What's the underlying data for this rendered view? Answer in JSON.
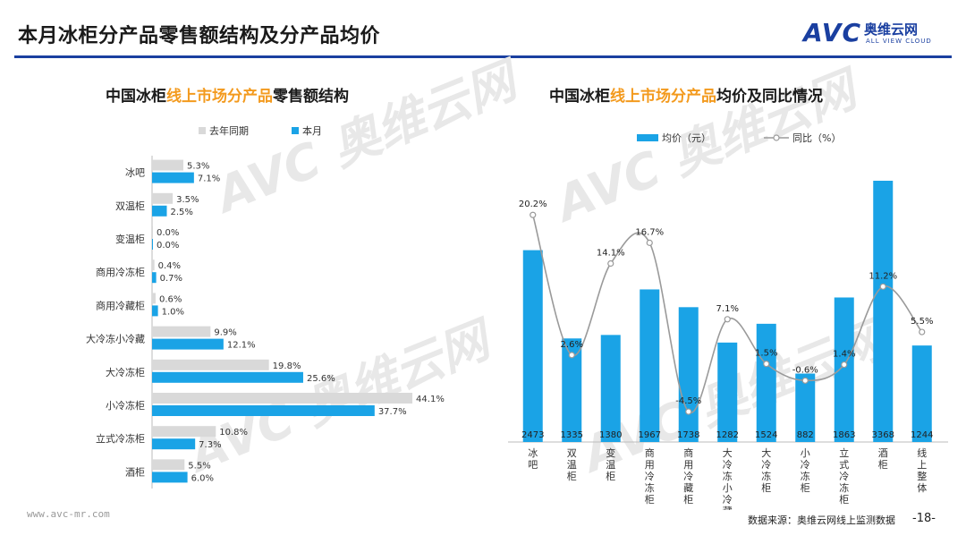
{
  "header": {
    "title": "本月冰柜分产品零售额结构及分产品均价",
    "logo_text": "AVC",
    "logo_cn": "奥维云网",
    "logo_en": "ALL VIEW CLOUD"
  },
  "colors": {
    "blue": "#1aa3e6",
    "gray": "#d9d9d9",
    "line": "#9a9a9a",
    "accent": "#f39a1e",
    "brand": "#1a3fa0"
  },
  "footer": {
    "url": "www.avc-mr.com",
    "source": "数据来源：奥维云网线上监测数据",
    "page": "-18-"
  },
  "chart_data": [
    {
      "type": "bar",
      "orientation": "horizontal",
      "title_parts": [
        "中国冰柜",
        "线上市场分产品",
        "零售额结构"
      ],
      "categories": [
        "冰吧",
        "双温柜",
        "变温柜",
        "商用冷冻柜",
        "商用冷藏柜",
        "大冷冻小冷藏",
        "大冷冻柜",
        "小冷冻柜",
        "立式冷冻柜",
        "酒柜"
      ],
      "series": [
        {
          "name": "去年同期",
          "values": [
            5.3,
            3.5,
            0.0,
            0.4,
            0.6,
            9.9,
            19.8,
            44.1,
            10.8,
            5.5
          ],
          "labels": [
            "5.3%",
            "3.5%",
            "0.0%",
            "0.4%",
            "0.6%",
            "9.9%",
            "19.8%",
            "44.1%",
            "10.8%",
            "5.5%"
          ]
        },
        {
          "name": "本月",
          "values": [
            7.1,
            2.5,
            0.0,
            0.7,
            1.0,
            12.1,
            25.6,
            37.7,
            7.3,
            6.0
          ],
          "labels": [
            "7.1%",
            "2.5%",
            "0.0%",
            "0.7%",
            "1.0%",
            "12.1%",
            "25.6%",
            "37.7%",
            "7.3%",
            "6.0%"
          ]
        }
      ],
      "xlim": [
        0,
        50
      ],
      "legend": "top-left"
    },
    {
      "type": "bar+line",
      "title_parts": [
        "中国冰柜",
        "线上市场分产品",
        "均价及同比情况"
      ],
      "categories": [
        "冰吧",
        "双温柜",
        "变温柜",
        "商用冷冻柜",
        "商用冷藏柜",
        "大冷冻小冷藏",
        "大冷冻柜",
        "小冷冻柜",
        "立式冷冻柜",
        "酒柜",
        "线上整体"
      ],
      "series": [
        {
          "name": "均价（元）",
          "type": "bar",
          "values": [
            2473,
            1335,
            1380,
            1967,
            1738,
            1282,
            1524,
            882,
            1863,
            3368,
            1244
          ],
          "labels": [
            "2473",
            "1335",
            "1380",
            "1967",
            "1738",
            "1282",
            "1524",
            "882",
            "1863",
            "3368",
            "1244"
          ]
        },
        {
          "name": "同比（%）",
          "type": "line",
          "values": [
            20.2,
            2.6,
            14.1,
            16.7,
            -4.5,
            7.1,
            1.5,
            -0.6,
            1.4,
            11.2,
            5.5
          ],
          "labels": [
            "20.2%",
            "2.6%",
            "14.1%",
            "16.7%",
            "-4.5%",
            "7.1%",
            "1.5%",
            "-0.6%",
            "1.4%",
            "11.2%",
            "5.5%"
          ]
        }
      ],
      "legend": "top"
    }
  ]
}
